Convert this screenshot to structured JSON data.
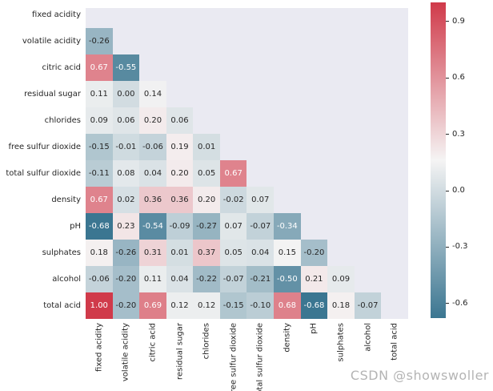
{
  "figure": {
    "watermark": "CSDN @showswoller"
  },
  "chart_data": {
    "type": "heatmap",
    "title": "",
    "xlabel": "",
    "ylabel": "",
    "labels": [
      "fixed acidity",
      "volatile acidity",
      "citric acid",
      "residual sugar",
      "chlorides",
      "free sulfur dioxide",
      "total sulfur dioxide",
      "density",
      "pH",
      "sulphates",
      "alcohol",
      "total acid"
    ],
    "mask": "upper triangle including diagonal is blank",
    "values_lower_triangle": [
      [],
      [
        -0.26
      ],
      [
        0.67,
        -0.55
      ],
      [
        0.11,
        0.0,
        0.14
      ],
      [
        0.09,
        0.06,
        0.2,
        0.06
      ],
      [
        -0.15,
        -0.01,
        -0.06,
        0.19,
        0.01
      ],
      [
        -0.11,
        0.08,
        0.04,
        0.2,
        0.05,
        0.67
      ],
      [
        0.67,
        0.02,
        0.36,
        0.36,
        0.2,
        -0.02,
        0.07
      ],
      [
        -0.68,
        0.23,
        -0.54,
        -0.09,
        -0.27,
        0.07,
        -0.07,
        -0.34
      ],
      [
        0.18,
        -0.26,
        0.31,
        0.01,
        0.37,
        0.05,
        0.04,
        0.15,
        -0.2
      ],
      [
        -0.06,
        -0.2,
        0.11,
        0.04,
        -0.22,
        -0.07,
        -0.21,
        -0.5,
        0.21,
        0.09
      ],
      [
        1.0,
        -0.2,
        0.69,
        0.12,
        0.12,
        -0.15,
        -0.1,
        0.68,
        -0.68,
        0.18,
        -0.07
      ]
    ],
    "annotation_format": "2 decimal places",
    "vmin": -0.68,
    "vmax": 1.0,
    "legend_position": "colorbar right",
    "grid": false,
    "colorbar": {
      "tick_labels": [
        "0.9",
        "0.6",
        "0.3",
        "0.0",
        "-0.3",
        "-0.6"
      ],
      "tick_values": [
        0.9,
        0.6,
        0.3,
        0.0,
        -0.3,
        -0.6
      ]
    },
    "colors": {
      "low": "#3b7691",
      "mid": "#f5f4f4",
      "high": "#d03a4a",
      "plot_background": "#eaeaf2",
      "annotation_dark": "#262626",
      "annotation_light": "#ffffff"
    }
  }
}
